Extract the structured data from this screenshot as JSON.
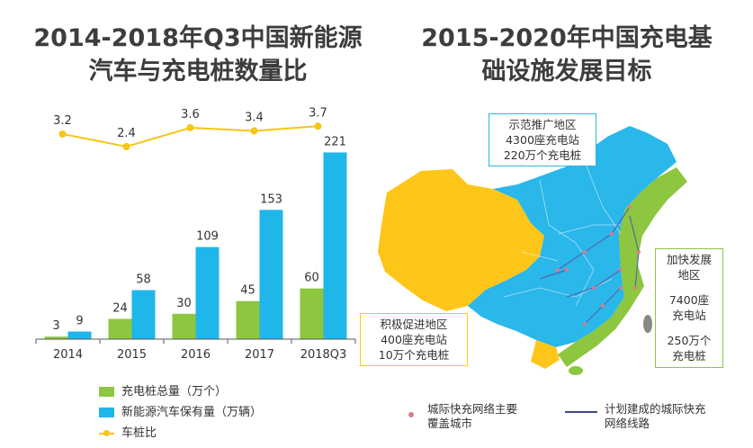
{
  "left_title": {
    "line1": "2014-2018年Q3中国新能源",
    "line2": "汽车与充电桩数量比"
  },
  "right_title": {
    "line1": "2015-2020年中国充电基",
    "line2": "础设施发展目标"
  },
  "colors": {
    "piles": "#8dc63f",
    "vehicles": "#1fb6ea",
    "ratio": "#f5c518",
    "axis": "#555555",
    "map_west": "#ffc61a",
    "map_central": "#2ab7ea",
    "map_east": "#8dc63f",
    "box_green": "#8dc63f",
    "box_blue": "#2ab7ea",
    "box_yellow": "#ffc61a"
  },
  "chart_data": {
    "type": "bar",
    "title": "2014-2018年Q3中国新能源汽车与充电桩数量比",
    "categories": [
      "2014",
      "2015",
      "2016",
      "2017",
      "2018Q3"
    ],
    "series": [
      {
        "name": "充电桩总量（万个）",
        "type": "bar",
        "values": [
          3,
          24,
          30,
          45,
          60
        ]
      },
      {
        "name": "新能源汽车保有量（万辆）",
        "type": "bar",
        "values": [
          9,
          58,
          109,
          153,
          221
        ]
      },
      {
        "name": "车桩比",
        "type": "line",
        "values": [
          3.2,
          2.4,
          3.6,
          3.4,
          3.7
        ]
      }
    ],
    "ylim": [
      0,
      230
    ],
    "ratio_ylim": [
      0,
      8
    ],
    "grid": false,
    "legend": "bottom-left"
  },
  "legend_items": [
    {
      "label": "充电桩总量（万个）",
      "icon": "square"
    },
    {
      "label": "新能源汽车保有量（万辆）",
      "icon": "square"
    },
    {
      "label": "车桩比",
      "icon": "line-dot"
    }
  ],
  "map": {
    "regions": {
      "demonstration": {
        "lines": [
          "示范推广地区",
          "4300座充电站",
          "220万个充电桩"
        ]
      },
      "fast": {
        "lines": [
          "加快发展",
          "地区",
          "",
          "7400座",
          "充电站",
          "",
          "250万个",
          "充电桩"
        ]
      },
      "active": {
        "lines": [
          "积极促进地区",
          "400座充电站",
          "10万个充电桩"
        ]
      }
    },
    "legend": [
      {
        "icon": "dot",
        "lines": [
          "城际快充网络主要",
          "覆盖城市"
        ]
      },
      {
        "icon": "line",
        "lines": [
          "计划建成的城际快充",
          "网络线路"
        ]
      }
    ]
  }
}
